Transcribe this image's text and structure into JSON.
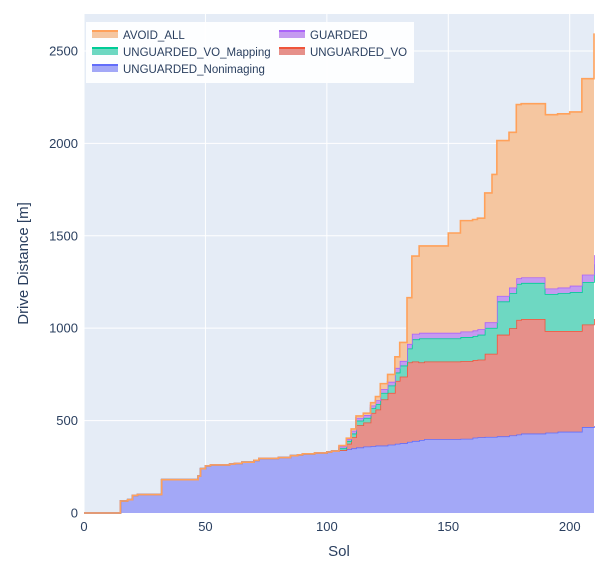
{
  "chart_data": {
    "type": "area",
    "stacked": true,
    "step": true,
    "title": "",
    "xlabel": "Sol",
    "ylabel": "Drive Distance [m]",
    "xlim": [
      0,
      210
    ],
    "ylim": [
      0,
      2700
    ],
    "x_ticks": [
      0,
      50,
      100,
      150,
      200
    ],
    "y_ticks": [
      0,
      500,
      1000,
      1500,
      2000,
      2500
    ],
    "grid": true,
    "legend_position": "top-left",
    "plot_background": "#e5ecf6",
    "series": [
      {
        "name": "UNGUARDED_Nonimaging",
        "fill": "#a3a8f7",
        "line": "#636efa",
        "x": [
          0,
          14,
          15,
          18,
          20,
          22,
          25,
          30,
          32,
          45,
          47,
          48,
          50,
          52,
          60,
          62,
          65,
          70,
          72,
          80,
          85,
          88,
          90,
          95,
          100,
          102,
          105,
          108,
          110,
          112,
          115,
          118,
          120,
          125,
          128,
          130,
          133,
          135,
          138,
          140,
          145,
          155,
          160,
          162,
          165,
          170,
          175,
          178,
          180,
          190,
          195,
          200,
          205,
          210
        ],
        "values": [
          0,
          0,
          65,
          72,
          95,
          100,
          100,
          100,
          180,
          180,
          200,
          240,
          255,
          260,
          265,
          268,
          275,
          285,
          295,
          300,
          310,
          315,
          320,
          325,
          330,
          335,
          340,
          345,
          350,
          355,
          360,
          362,
          365,
          370,
          375,
          378,
          385,
          390,
          395,
          400,
          400,
          402,
          408,
          410,
          412,
          415,
          420,
          425,
          430,
          435,
          440,
          440,
          465,
          470
        ]
      },
      {
        "name": "UNGUARDED_VO",
        "fill": "#e6908a",
        "line": "#ef553b",
        "x": [
          0,
          95,
          100,
          102,
          105,
          108,
          110,
          112,
          115,
          118,
          120,
          122,
          125,
          128,
          130,
          133,
          135,
          138,
          140,
          145,
          155,
          160,
          162,
          165,
          170,
          175,
          178,
          180,
          190,
          195,
          200,
          205,
          210
        ],
        "values": [
          0,
          0,
          0,
          0,
          0,
          30,
          60,
          120,
          130,
          180,
          195,
          250,
          280,
          340,
          360,
          430,
          430,
          420,
          420,
          420,
          420,
          420,
          420,
          450,
          550,
          580,
          620,
          620,
          550,
          545,
          545,
          555,
          580
        ]
      },
      {
        "name": "UNGUARDED_VO_Mapping",
        "fill": "#6ed8c2",
        "line": "#00cc96",
        "x": [
          0,
          100,
          105,
          108,
          110,
          112,
          115,
          118,
          120,
          122,
          125,
          128,
          130,
          133,
          135,
          138,
          140,
          145,
          155,
          160,
          162,
          165,
          170,
          175,
          178,
          180,
          190,
          195,
          200,
          205,
          210
        ],
        "values": [
          0,
          0,
          10,
          15,
          20,
          25,
          25,
          25,
          30,
          35,
          40,
          45,
          60,
          75,
          120,
          130,
          125,
          125,
          130,
          130,
          135,
          140,
          180,
          190,
          195,
          195,
          200,
          205,
          210,
          230,
          295
        ]
      },
      {
        "name": "GUARDED",
        "fill": "#c59af0",
        "line": "#ab63fa",
        "x": [
          0,
          100,
          105,
          110,
          115,
          120,
          125,
          128,
          130,
          135,
          140,
          155,
          160,
          165,
          170,
          175,
          180,
          190,
          200,
          205,
          210
        ],
        "values": [
          0,
          0,
          10,
          15,
          15,
          20,
          20,
          25,
          25,
          30,
          30,
          30,
          30,
          30,
          30,
          30,
          30,
          30,
          35,
          40,
          50
        ]
      },
      {
        "name": "AVOID_ALL",
        "fill": "#f5c6a0",
        "line": "#ffa15a",
        "x": [
          0,
          100,
          105,
          110,
          115,
          118,
          120,
          122,
          125,
          128,
          130,
          133,
          135,
          138,
          140,
          145,
          150,
          155,
          160,
          162,
          165,
          168,
          170,
          175,
          178,
          180,
          190,
          195,
          200,
          205,
          210
        ],
        "values": [
          0,
          0,
          5,
          10,
          10,
          15,
          20,
          30,
          40,
          60,
          100,
          250,
          420,
          470,
          470,
          470,
          540,
          600,
          600,
          600,
          700,
          800,
          840,
          840,
          940,
          940,
          940,
          940,
          940,
          1060,
          1200
        ]
      }
    ],
    "legend": [
      {
        "series": "AVOID_ALL",
        "label": "AVOID_ALL"
      },
      {
        "series": "GUARDED",
        "label": "GUARDED"
      },
      {
        "series": "UNGUARDED_VO_Mapping",
        "label": "UNGUARDED_VO_Mapping"
      },
      {
        "series": "UNGUARDED_VO",
        "label": "UNGUARDED_VO"
      },
      {
        "series": "UNGUARDED_Nonimaging",
        "label": "UNGUARDED_Nonimaging"
      }
    ]
  }
}
